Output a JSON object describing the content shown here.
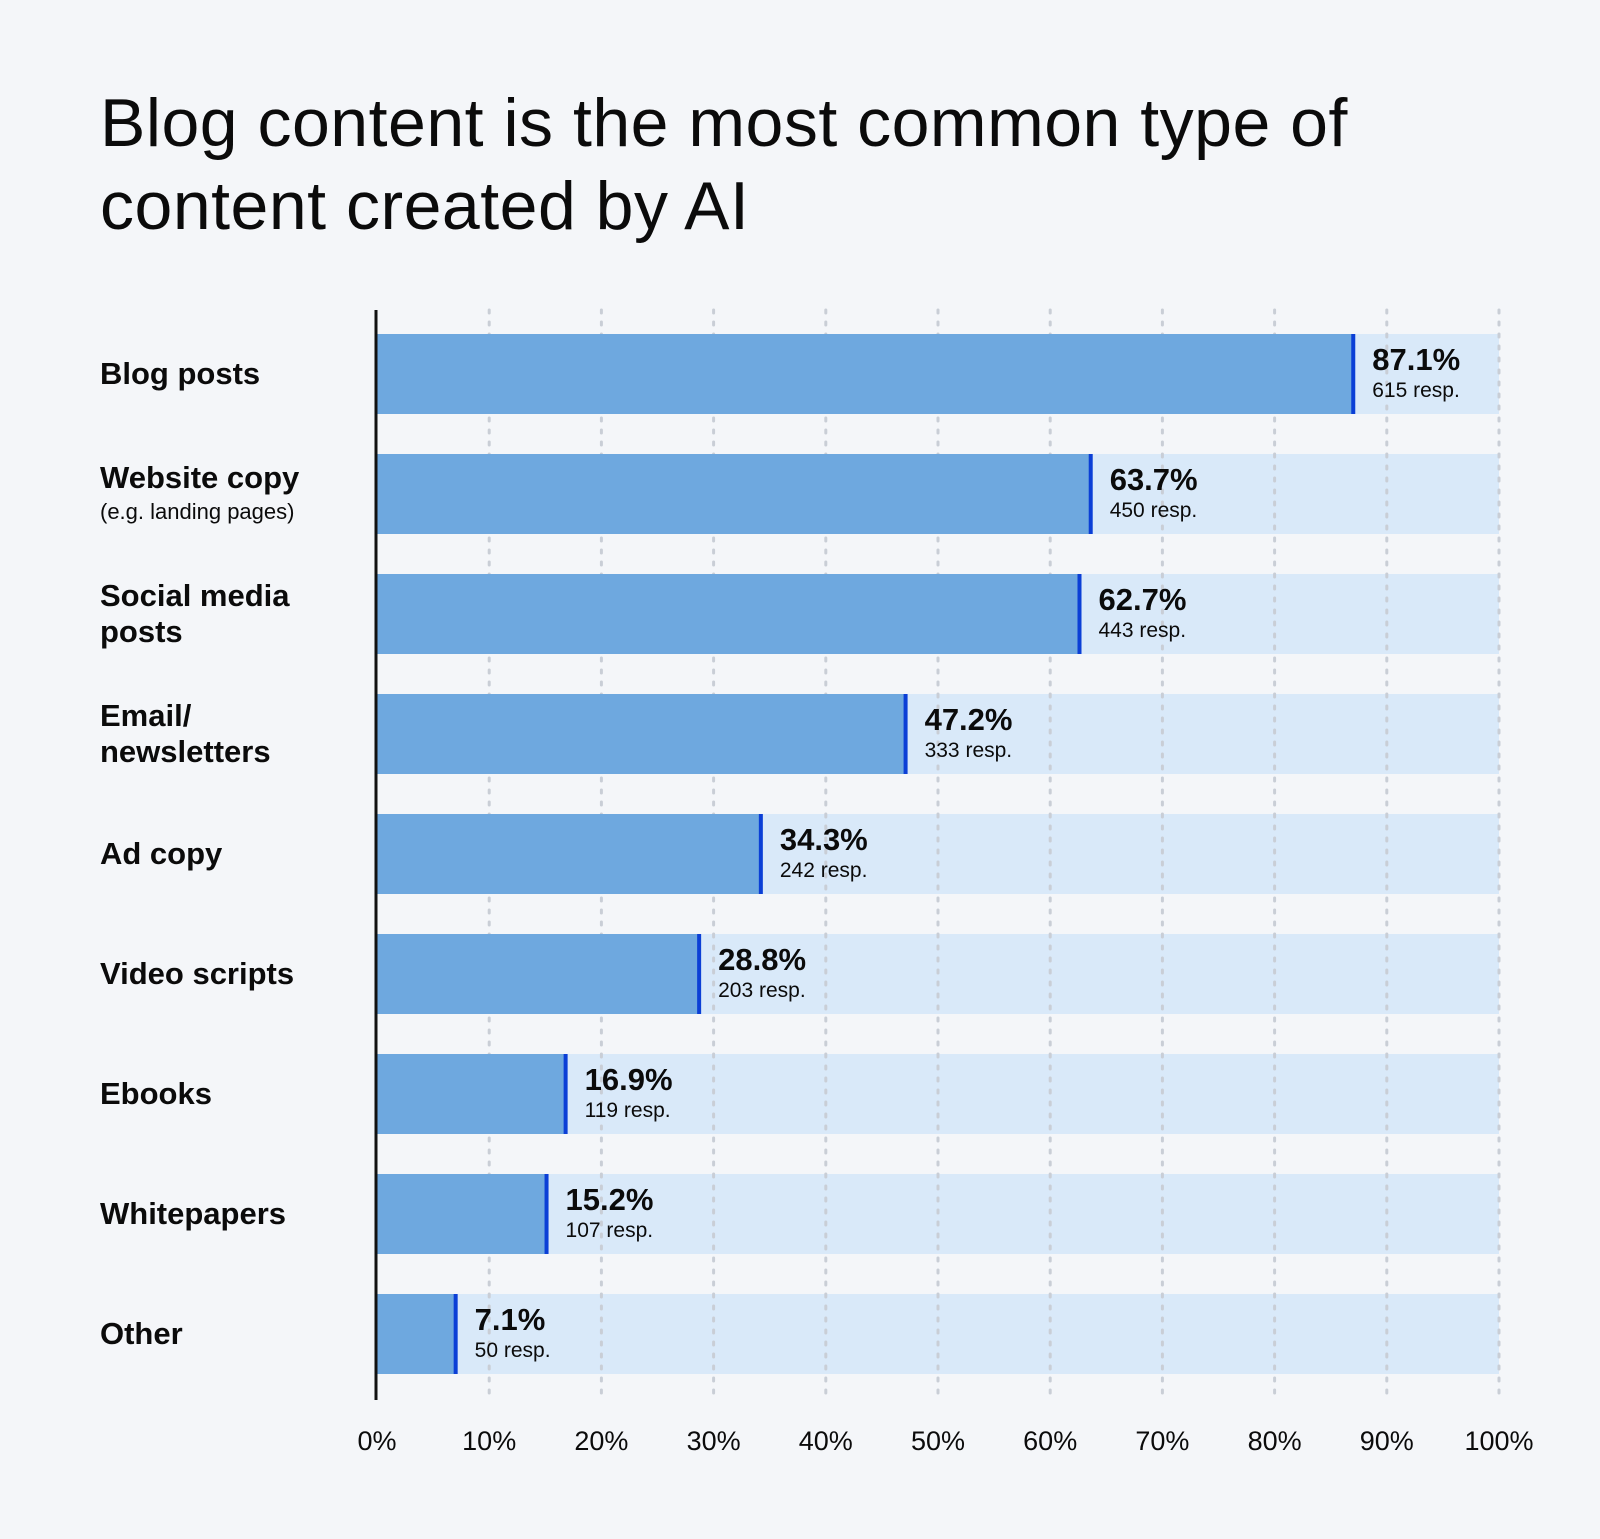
{
  "chart_data": {
    "type": "bar",
    "orientation": "horizontal",
    "title": "Blog content is the most common type of content created by AI",
    "categories": [
      "Blog posts",
      "Website copy",
      "Social media posts",
      "Email/ newsletters",
      "Ad copy",
      "Video scripts",
      "Ebooks",
      "Whitepapers",
      "Other"
    ],
    "category_notes": [
      "",
      "(e.g. landing pages)",
      "",
      "",
      "",
      "",
      "",
      "",
      ""
    ],
    "values": [
      87.1,
      63.7,
      62.7,
      47.2,
      34.3,
      28.8,
      16.9,
      15.2,
      7.1
    ],
    "value_labels": [
      "87.1%",
      "63.7%",
      "62.7%",
      "47.2%",
      "34.3%",
      "28.8%",
      "16.9%",
      "15.2%",
      "7.1%"
    ],
    "responses": [
      615,
      450,
      443,
      333,
      242,
      203,
      119,
      107,
      50
    ],
    "response_labels": [
      "615 resp.",
      "450 resp.",
      "443 resp.",
      "333 resp.",
      "242 resp.",
      "203 resp.",
      "119 resp.",
      "107 resp.",
      "50 resp."
    ],
    "xlim": [
      0,
      100
    ],
    "xticks": [
      0,
      10,
      20,
      30,
      40,
      50,
      60,
      70,
      80,
      90,
      100
    ],
    "xtick_labels": [
      "0%",
      "10%",
      "20%",
      "30%",
      "40%",
      "50%",
      "60%",
      "70%",
      "80%",
      "90%",
      "100%"
    ],
    "grid": "vertical dotted",
    "colors": {
      "bar": "#6ea8df",
      "track": "#d9e9f9",
      "bar_end_marker": "#0b3fd6",
      "axis": "#111111",
      "grid": "#c9ced6",
      "background": "#f4f6f9"
    }
  }
}
